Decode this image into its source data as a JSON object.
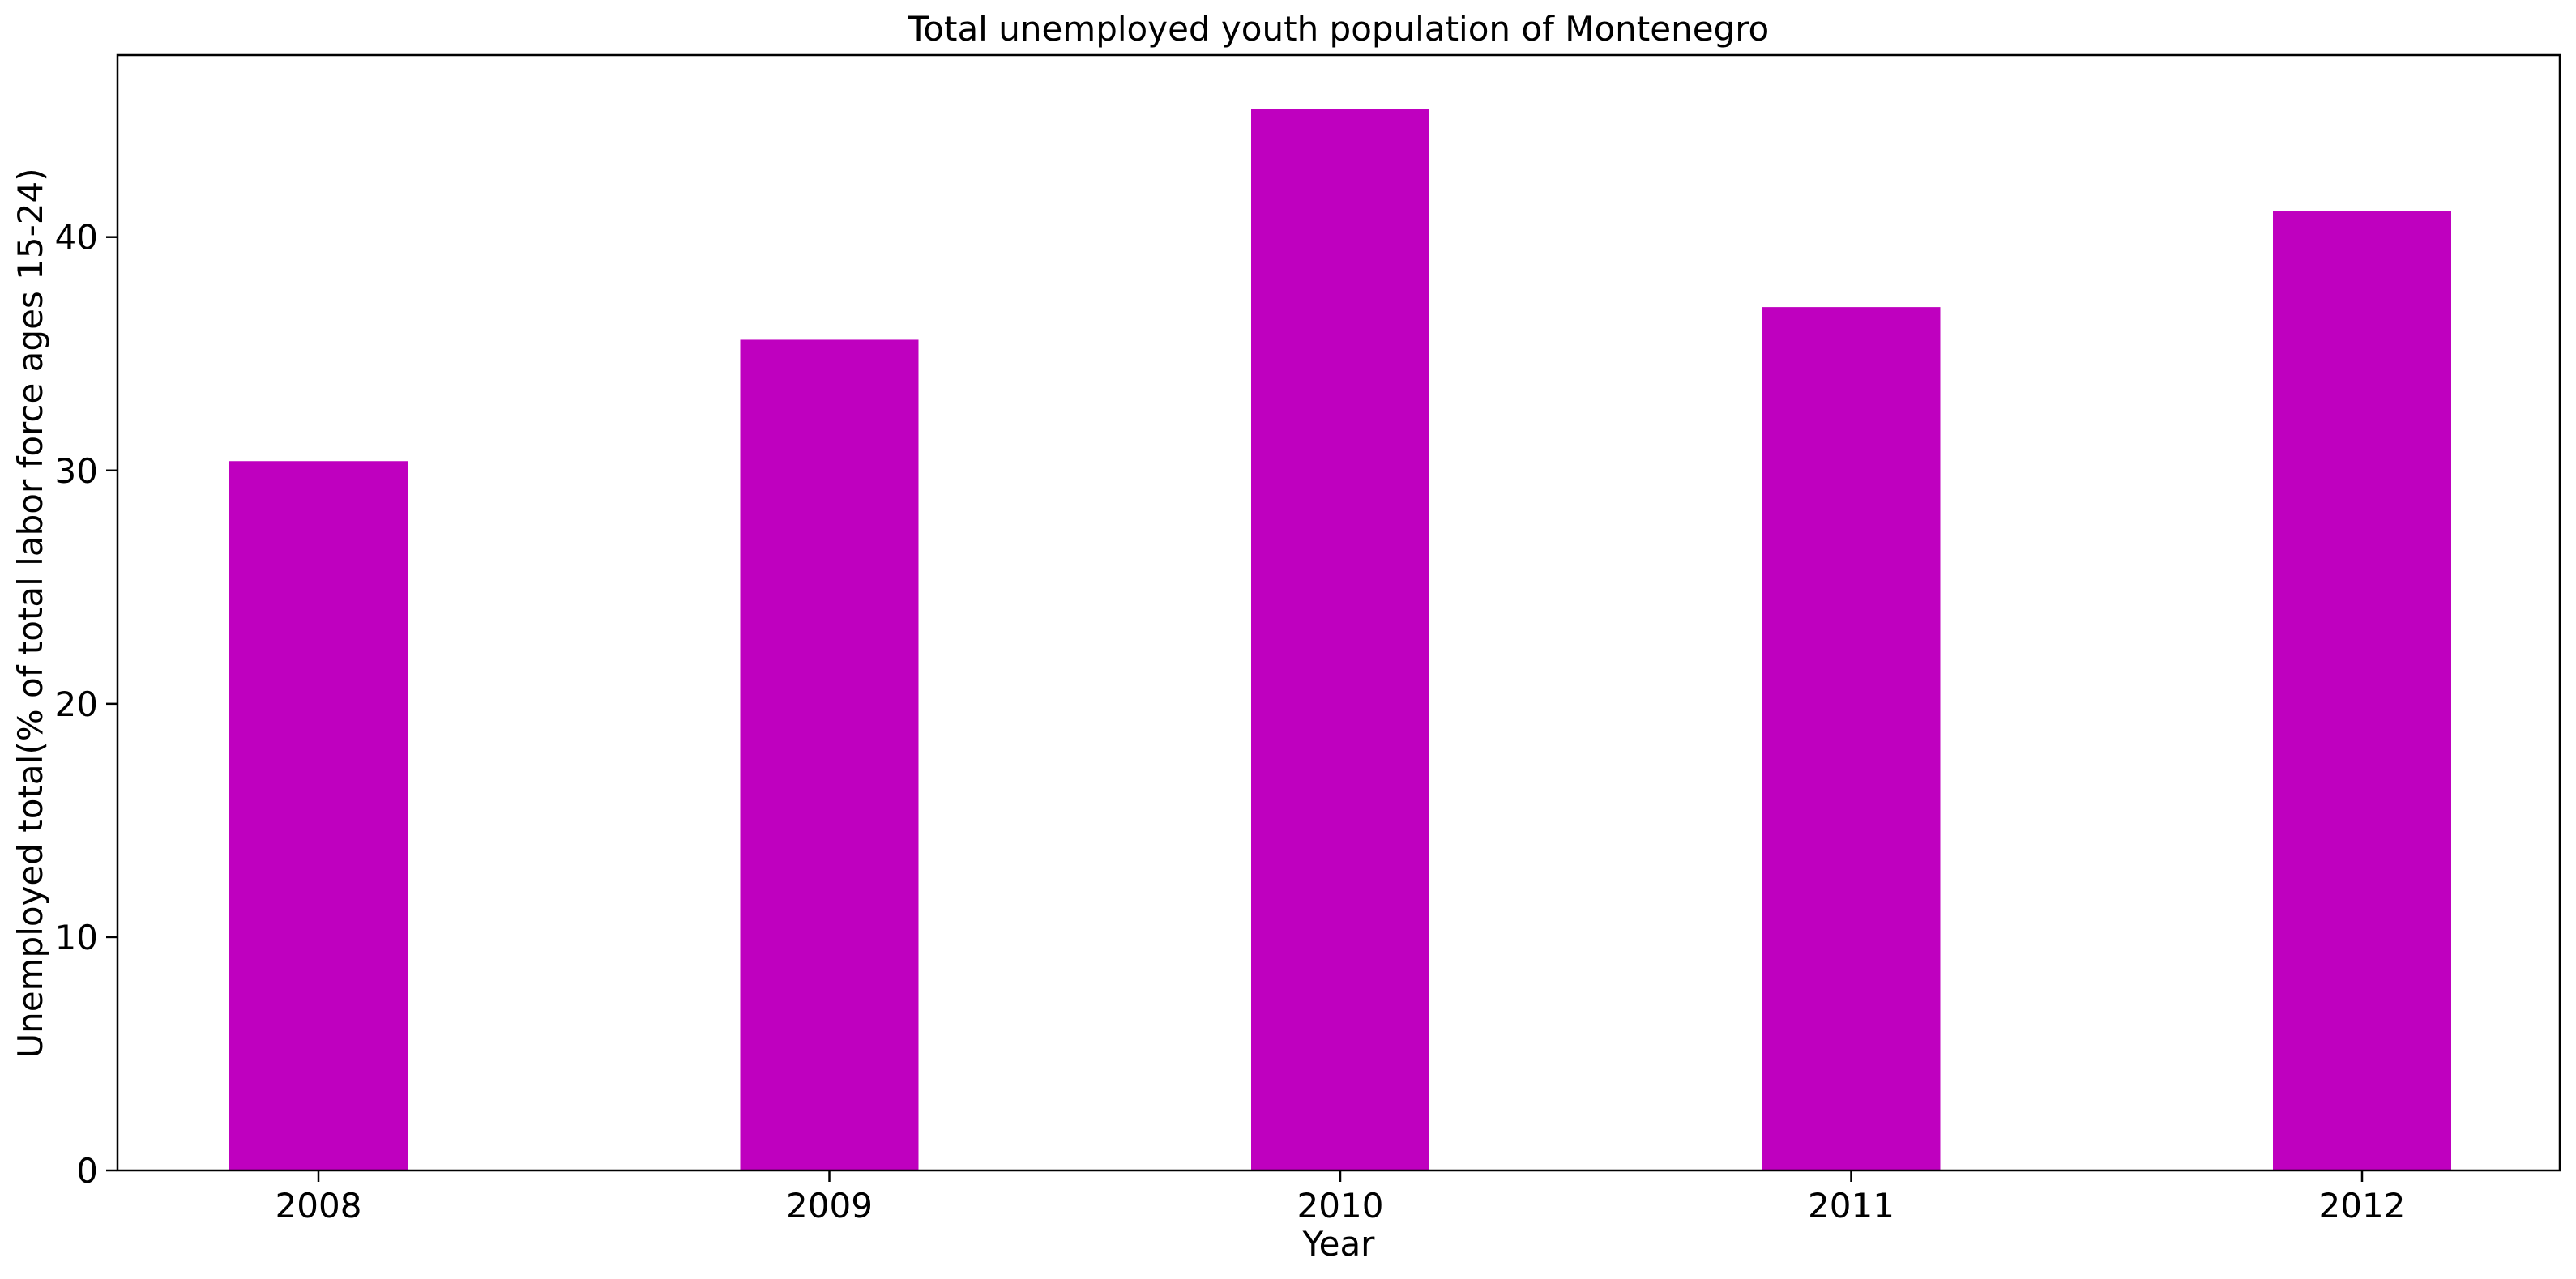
{
  "chart_data": {
    "type": "bar",
    "title": "Total unemployed youth population of Montenegro",
    "xlabel": "Year",
    "ylabel": "Unemployed total(% of total labor force ages 15-24)",
    "categories": [
      "2008",
      "2009",
      "2010",
      "2011",
      "2012"
    ],
    "values": [
      30.4,
      35.6,
      45.5,
      37.0,
      41.1
    ],
    "ylim": [
      0,
      47.8
    ],
    "yticks": [
      0,
      10,
      20,
      30,
      40
    ],
    "bar_color": "#bf00bf",
    "grid": false,
    "legend": false
  }
}
